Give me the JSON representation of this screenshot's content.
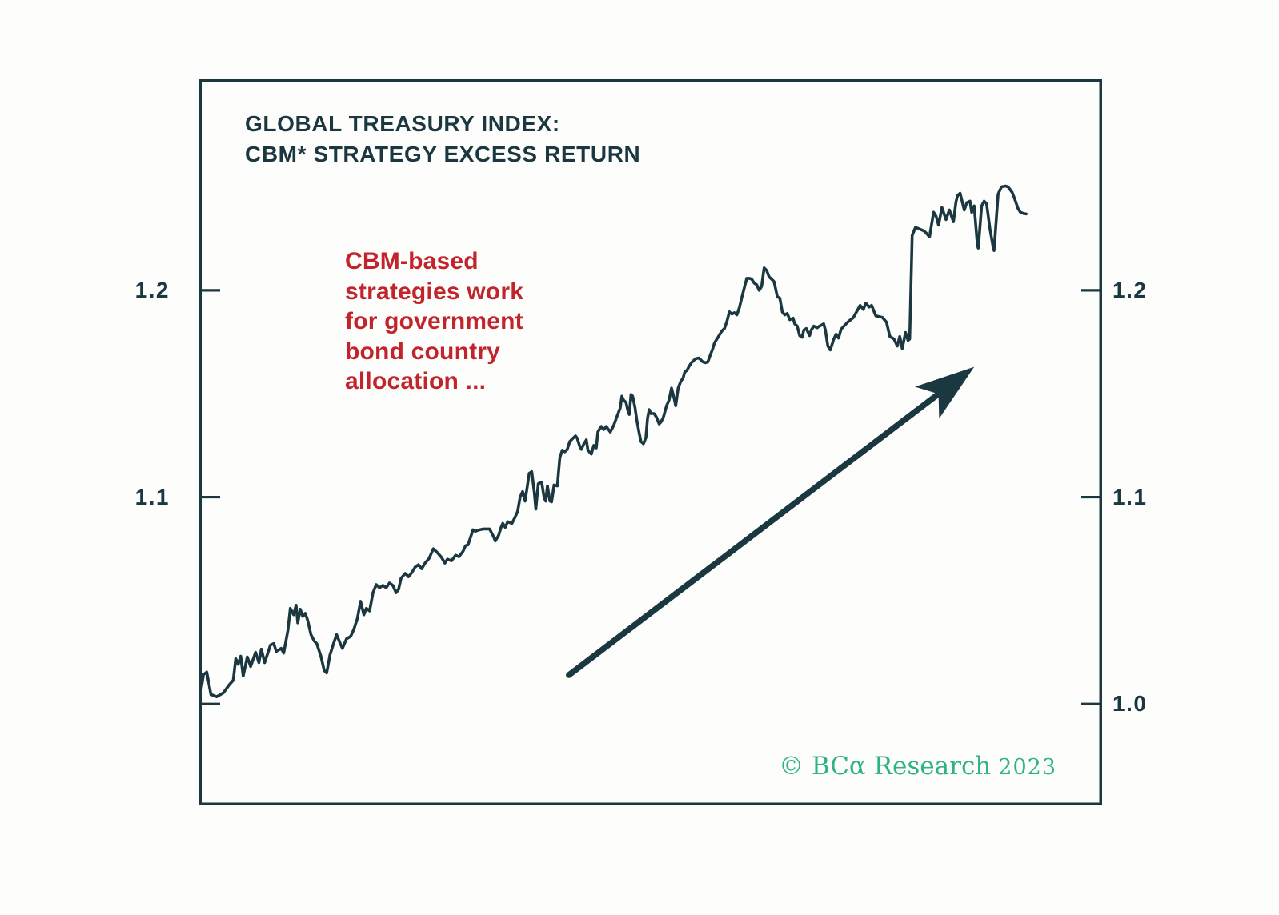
{
  "page": {
    "background": "#fdfdfc"
  },
  "header": {
    "title_lines": [
      "GLOBAL TREASURY INDEX:",
      "CBM* STRATEGY EXCESS RETURN"
    ]
  },
  "annotation": {
    "lines": [
      "CBM-based",
      "strategies work",
      "for government",
      "bond country",
      "allocation ..."
    ],
    "color": "#c2242c"
  },
  "footer": {
    "copyright_brand": "© BCα Research",
    "copyright_year": "2023",
    "color": "#2fb381"
  },
  "colors": {
    "ink": "#1b3840",
    "red": "#c2242c",
    "green": "#2fb381"
  },
  "chart_data": {
    "type": "line",
    "title": "GLOBAL TREASURY INDEX: CBM* STRATEGY EXCESS RETURN",
    "xlabel": "",
    "ylabel": "",
    "grid": false,
    "legend": null,
    "x_axis": {
      "tick_labels": [],
      "note": "time axis, unlabeled"
    },
    "y_axis": {
      "ylim": [
        0.951,
        1.302
      ],
      "ticks": [
        1.0,
        1.1,
        1.2
      ],
      "left_tick_labels": [
        "",
        "1.1",
        "1.2"
      ],
      "right_tick_labels": [
        "1.0",
        "1.1",
        "1.2"
      ]
    },
    "line_color": "#1b3840",
    "x_end_frac": 0.916,
    "arrow": {
      "from": [
        0.447,
        1.014
      ],
      "to": [
        0.937,
        1.163
      ]
    },
    "points": [
      [
        0.0,
        1.002
      ],
      [
        0.005,
        1.0142
      ],
      [
        0.009,
        1.0154
      ],
      [
        0.014,
        1.0046
      ],
      [
        0.021,
        1.0035
      ],
      [
        0.029,
        1.0054
      ],
      [
        0.036,
        1.0092
      ],
      [
        0.041,
        1.0115
      ],
      [
        0.044,
        1.0219
      ],
      [
        0.047,
        1.0192
      ],
      [
        0.05,
        1.0231
      ],
      [
        0.053,
        1.0135
      ],
      [
        0.058,
        1.0227
      ],
      [
        0.062,
        1.0181
      ],
      [
        0.068,
        1.025
      ],
      [
        0.072,
        1.02
      ],
      [
        0.075,
        1.0265
      ],
      [
        0.079,
        1.02
      ],
      [
        0.086,
        1.0285
      ],
      [
        0.09,
        1.0292
      ],
      [
        0.093,
        1.0254
      ],
      [
        0.099,
        1.0269
      ],
      [
        0.102,
        1.0246
      ],
      [
        0.107,
        1.0354
      ],
      [
        0.11,
        1.0462
      ],
      [
        0.114,
        1.0431
      ],
      [
        0.117,
        1.0477
      ],
      [
        0.119,
        1.0392
      ],
      [
        0.122,
        1.0458
      ],
      [
        0.125,
        1.0423
      ],
      [
        0.128,
        1.0438
      ],
      [
        0.131,
        1.0404
      ],
      [
        0.135,
        1.0335
      ],
      [
        0.139,
        1.0304
      ],
      [
        0.142,
        1.0292
      ],
      [
        0.147,
        1.0231
      ],
      [
        0.151,
        1.0162
      ],
      [
        0.154,
        1.015
      ],
      [
        0.158,
        1.0238
      ],
      [
        0.162,
        1.0288
      ],
      [
        0.166,
        1.0335
      ],
      [
        0.17,
        1.0296
      ],
      [
        0.173,
        1.0269
      ],
      [
        0.178,
        1.0315
      ],
      [
        0.183,
        1.0327
      ],
      [
        0.187,
        1.0362
      ],
      [
        0.191,
        1.0412
      ],
      [
        0.195,
        1.0496
      ],
      [
        0.199,
        1.0431
      ],
      [
        0.202,
        1.0462
      ],
      [
        0.206,
        1.045
      ],
      [
        0.21,
        1.0538
      ],
      [
        0.214,
        1.0577
      ],
      [
        0.218,
        1.0562
      ],
      [
        0.222,
        1.0573
      ],
      [
        0.226,
        1.0562
      ],
      [
        0.23,
        1.0585
      ],
      [
        0.234,
        1.0573
      ],
      [
        0.238,
        1.0538
      ],
      [
        0.241,
        1.0554
      ],
      [
        0.244,
        1.0608
      ],
      [
        0.249,
        1.0631
      ],
      [
        0.253,
        1.0615
      ],
      [
        0.257,
        1.0635
      ],
      [
        0.261,
        1.0662
      ],
      [
        0.265,
        1.0673
      ],
      [
        0.269,
        1.0654
      ],
      [
        0.273,
        1.0681
      ],
      [
        0.278,
        1.0704
      ],
      [
        0.283,
        1.075
      ],
      [
        0.288,
        1.0731
      ],
      [
        0.293,
        1.0708
      ],
      [
        0.297,
        1.0681
      ],
      [
        0.3,
        1.07
      ],
      [
        0.305,
        1.0692
      ],
      [
        0.31,
        1.0719
      ],
      [
        0.314,
        1.0712
      ],
      [
        0.319,
        1.0738
      ],
      [
        0.322,
        1.0765
      ],
      [
        0.325,
        1.0769
      ],
      [
        0.331,
        1.0842
      ],
      [
        0.334,
        1.0835
      ],
      [
        0.339,
        1.0842
      ],
      [
        0.344,
        1.0846
      ],
      [
        0.351,
        1.0846
      ],
      [
        0.356,
        1.0808
      ],
      [
        0.358,
        1.0788
      ],
      [
        0.362,
        1.0815
      ],
      [
        0.365,
        1.0854
      ],
      [
        0.367,
        1.0873
      ],
      [
        0.37,
        1.0854
      ],
      [
        0.373,
        1.0881
      ],
      [
        0.378,
        1.0873
      ],
      [
        0.382,
        1.0904
      ],
      [
        0.385,
        1.0931
      ],
      [
        0.388,
        1.1
      ],
      [
        0.391,
        1.1027
      ],
      [
        0.394,
        1.0981
      ],
      [
        0.399,
        1.1115
      ],
      [
        0.402,
        1.1123
      ],
      [
        0.405,
        1.1027
      ],
      [
        0.407,
        1.0942
      ],
      [
        0.41,
        1.1065
      ],
      [
        0.414,
        1.1073
      ],
      [
        0.417,
        1.0996
      ],
      [
        0.419,
        1.0981
      ],
      [
        0.421,
        1.1054
      ],
      [
        0.424,
        1.0981
      ],
      [
        0.426,
        1.0977
      ],
      [
        0.429,
        1.1058
      ],
      [
        0.433,
        1.1054
      ],
      [
        0.436,
        1.1192
      ],
      [
        0.439,
        1.1227
      ],
      [
        0.442,
        1.1219
      ],
      [
        0.445,
        1.1231
      ],
      [
        0.448,
        1.1269
      ],
      [
        0.452,
        1.1285
      ],
      [
        0.455,
        1.1296
      ],
      [
        0.457,
        1.1285
      ],
      [
        0.46,
        1.1246
      ],
      [
        0.462,
        1.1231
      ],
      [
        0.465,
        1.1258
      ],
      [
        0.468,
        1.1277
      ],
      [
        0.47,
        1.1227
      ],
      [
        0.474,
        1.1208
      ],
      [
        0.477,
        1.125
      ],
      [
        0.48,
        1.1238
      ],
      [
        0.482,
        1.1315
      ],
      [
        0.486,
        1.1342
      ],
      [
        0.489,
        1.1327
      ],
      [
        0.492,
        1.1342
      ],
      [
        0.497,
        1.1315
      ],
      [
        0.501,
        1.1346
      ],
      [
        0.506,
        1.14
      ],
      [
        0.509,
        1.1431
      ],
      [
        0.511,
        1.1488
      ],
      [
        0.513,
        1.1469
      ],
      [
        0.516,
        1.1458
      ],
      [
        0.518,
        1.1423
      ],
      [
        0.52,
        1.14
      ],
      [
        0.522,
        1.1496
      ],
      [
        0.524,
        1.1488
      ],
      [
        0.527,
        1.1431
      ],
      [
        0.529,
        1.1373
      ],
      [
        0.532,
        1.1308
      ],
      [
        0.534,
        1.1269
      ],
      [
        0.537,
        1.1258
      ],
      [
        0.54,
        1.1288
      ],
      [
        0.542,
        1.1381
      ],
      [
        0.544,
        1.1423
      ],
      [
        0.546,
        1.1404
      ],
      [
        0.55,
        1.1404
      ],
      [
        0.553,
        1.1385
      ],
      [
        0.556,
        1.1354
      ],
      [
        0.558,
        1.1362
      ],
      [
        0.561,
        1.1385
      ],
      [
        0.565,
        1.1442
      ],
      [
        0.568,
        1.1469
      ],
      [
        0.571,
        1.1527
      ],
      [
        0.574,
        1.1481
      ],
      [
        0.576,
        1.1442
      ],
      [
        0.579,
        1.1527
      ],
      [
        0.582,
        1.1558
      ],
      [
        0.585,
        1.1577
      ],
      [
        0.587,
        1.1604
      ],
      [
        0.59,
        1.1615
      ],
      [
        0.592,
        1.1631
      ],
      [
        0.595,
        1.165
      ],
      [
        0.6,
        1.1669
      ],
      [
        0.604,
        1.1673
      ],
      [
        0.609,
        1.1654
      ],
      [
        0.612,
        1.165
      ],
      [
        0.615,
        1.1654
      ],
      [
        0.618,
        1.1688
      ],
      [
        0.621,
        1.1719
      ],
      [
        0.623,
        1.1746
      ],
      [
        0.626,
        1.1765
      ],
      [
        0.629,
        1.1785
      ],
      [
        0.632,
        1.1804
      ],
      [
        0.635,
        1.1815
      ],
      [
        0.638,
        1.185
      ],
      [
        0.641,
        1.1896
      ],
      [
        0.644,
        1.1885
      ],
      [
        0.647,
        1.1892
      ],
      [
        0.65,
        1.1881
      ],
      [
        0.653,
        1.1915
      ],
      [
        0.656,
        1.1965
      ],
      [
        0.659,
        1.2012
      ],
      [
        0.662,
        1.2058
      ],
      [
        0.665,
        1.2058
      ],
      [
        0.668,
        1.2054
      ],
      [
        0.671,
        1.2035
      ],
      [
        0.674,
        1.2027
      ],
      [
        0.677,
        1.2
      ],
      [
        0.68,
        1.2019
      ],
      [
        0.683,
        1.2108
      ],
      [
        0.686,
        1.2096
      ],
      [
        0.689,
        1.2065
      ],
      [
        0.692,
        1.2054
      ],
      [
        0.695,
        1.2042
      ],
      [
        0.699,
        1.1969
      ],
      [
        0.702,
        1.1962
      ],
      [
        0.705,
        1.1896
      ],
      [
        0.708,
        1.1881
      ],
      [
        0.711,
        1.1888
      ],
      [
        0.714,
        1.1858
      ],
      [
        0.718,
        1.1865
      ],
      [
        0.72,
        1.1838
      ],
      [
        0.723,
        1.1827
      ],
      [
        0.726,
        1.1781
      ],
      [
        0.729,
        1.1773
      ],
      [
        0.731,
        1.1808
      ],
      [
        0.734,
        1.1815
      ],
      [
        0.738,
        1.1781
      ],
      [
        0.74,
        1.1808
      ],
      [
        0.743,
        1.1827
      ],
      [
        0.747,
        1.1819
      ],
      [
        0.75,
        1.1827
      ],
      [
        0.752,
        1.1831
      ],
      [
        0.755,
        1.1838
      ],
      [
        0.757,
        1.1808
      ],
      [
        0.76,
        1.1731
      ],
      [
        0.763,
        1.1712
      ],
      [
        0.767,
        1.1762
      ],
      [
        0.77,
        1.1788
      ],
      [
        0.773,
        1.1769
      ],
      [
        0.776,
        1.1812
      ],
      [
        0.784,
        1.1846
      ],
      [
        0.791,
        1.1869
      ],
      [
        0.799,
        1.1927
      ],
      [
        0.803,
        1.1908
      ],
      [
        0.806,
        1.1938
      ],
      [
        0.81,
        1.1919
      ],
      [
        0.813,
        1.1927
      ],
      [
        0.818,
        1.1877
      ],
      [
        0.826,
        1.1869
      ],
      [
        0.831,
        1.1846
      ],
      [
        0.835,
        1.1777
      ],
      [
        0.84,
        1.1765
      ],
      [
        0.844,
        1.1731
      ],
      [
        0.847,
        1.1777
      ],
      [
        0.85,
        1.1719
      ],
      [
        0.854,
        1.1796
      ],
      [
        0.857,
        1.1758
      ],
      [
        0.859,
        1.1765
      ],
      [
        0.862,
        1.2265
      ],
      [
        0.866,
        1.2304
      ],
      [
        0.871,
        1.2296
      ],
      [
        0.876,
        1.2288
      ],
      [
        0.879,
        1.2277
      ],
      [
        0.883,
        1.2258
      ],
      [
        0.888,
        1.2377
      ],
      [
        0.891,
        1.2358
      ],
      [
        0.894,
        1.2315
      ],
      [
        0.898,
        1.24
      ],
      [
        0.903,
        1.2342
      ],
      [
        0.907,
        1.2388
      ],
      [
        0.912,
        1.2331
      ],
      [
        0.915,
        1.2427
      ],
      [
        0.917,
        1.2458
      ],
      [
        0.92,
        1.2469
      ],
      [
        0.925,
        1.2388
      ],
      [
        0.928,
        1.2423
      ],
      [
        0.932,
        1.2431
      ],
      [
        0.934,
        1.2377
      ],
      [
        0.937,
        1.2408
      ],
      [
        0.941,
        1.2215
      ],
      [
        0.942,
        1.2204
      ],
      [
        0.946,
        1.2408
      ],
      [
        0.949,
        1.2431
      ],
      [
        0.952,
        1.2419
      ],
      [
        0.956,
        1.23
      ],
      [
        0.96,
        1.2208
      ],
      [
        0.961,
        1.2192
      ],
      [
        0.966,
        1.2465
      ],
      [
        0.97,
        1.25
      ],
      [
        0.975,
        1.2504
      ],
      [
        0.978,
        1.25
      ],
      [
        0.983,
        1.2473
      ],
      [
        0.986,
        1.2442
      ],
      [
        0.99,
        1.2396
      ],
      [
        0.993,
        1.2377
      ],
      [
        0.997,
        1.2371
      ],
      [
        1.0,
        1.2369
      ]
    ]
  }
}
